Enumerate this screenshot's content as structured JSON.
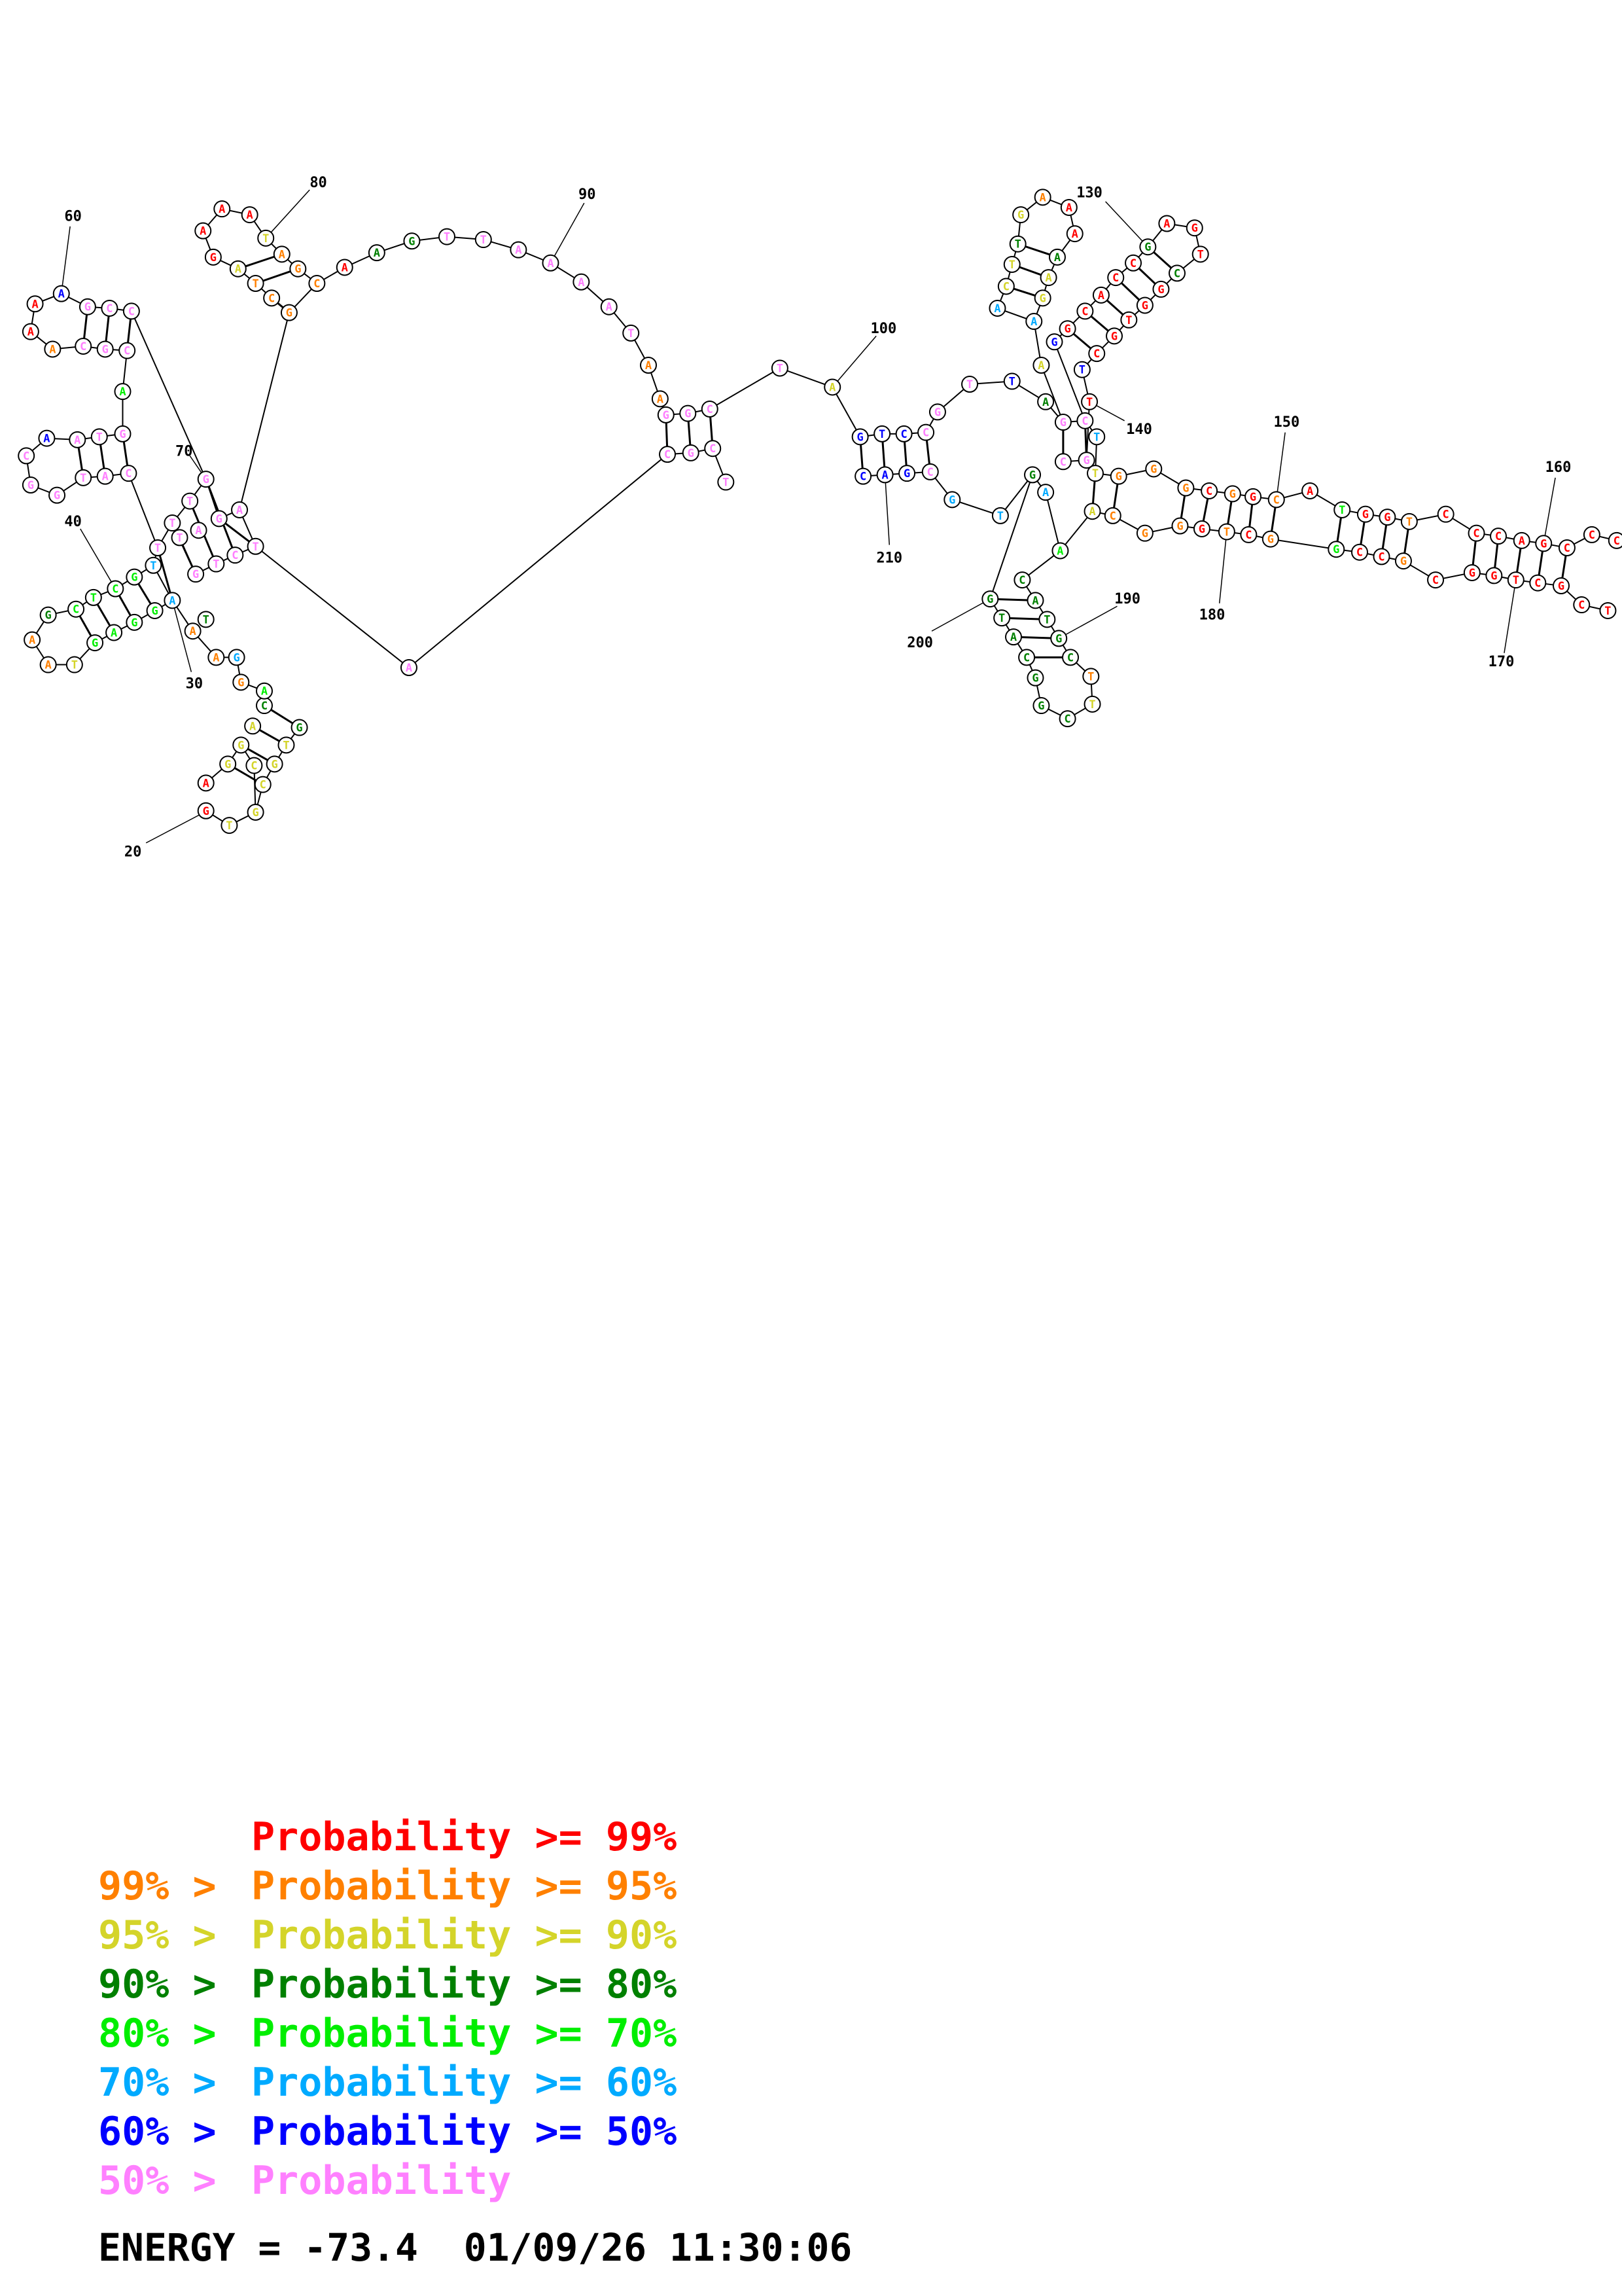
{
  "colors": {
    "p99": "#ff0000",
    "p95": "#ff8000",
    "p90": "#d4d42a",
    "p80": "#008000",
    "p70": "#00ee00",
    "p60": "#00aaff",
    "p50": "#0000ff",
    "plow": "#ff80ff"
  },
  "position_labels": [
    "20",
    "30",
    "40",
    "60",
    "70",
    "80",
    "90",
    "100",
    "130",
    "140",
    "150",
    "160",
    "170",
    "180",
    "190",
    "200",
    "210"
  ],
  "legend": [
    {
      "prefix": "",
      "text": "Probability >= 99%",
      "color_key": "p99"
    },
    {
      "prefix": "99% > ",
      "text": "Probability >= 95%",
      "color_key": "p95"
    },
    {
      "prefix": "95% > ",
      "text": "Probability >= 90%",
      "color_key": "p90"
    },
    {
      "prefix": "90% > ",
      "text": "Probability >= 80%",
      "color_key": "p80"
    },
    {
      "prefix": "80% > ",
      "text": "Probability >= 70%",
      "color_key": "p70"
    },
    {
      "prefix": "70% > ",
      "text": "Probability >= 60%",
      "color_key": "p60"
    },
    {
      "prefix": "60% > ",
      "text": "Probability >= 50%",
      "color_key": "p50"
    },
    {
      "prefix": "50% > ",
      "text": "Probability",
      "color_key": "plow"
    }
  ],
  "energy": "ENERGY = -73.4  01/09/26 11:30:06"
}
